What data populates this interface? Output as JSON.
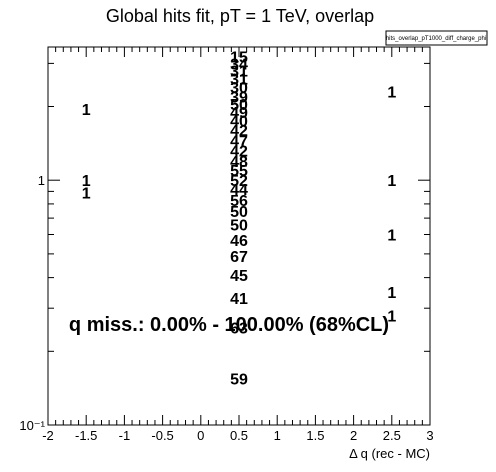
{
  "chart_data": {
    "type": "scatter",
    "title": "Global hits fit, pT = 1 TeV, overlap",
    "xlabel": "Δ q (rec - MC)",
    "ylabel": "",
    "xlim": [
      -2,
      3
    ],
    "ylim": [
      0.1,
      3.5
    ],
    "y_scale": "log",
    "grid": false,
    "x_ticks": [
      "-2",
      "-1.5",
      "-1",
      "-0.5",
      "0",
      "0.5",
      "1",
      "1.5",
      "2",
      "2.5",
      "3"
    ],
    "y_ticks": [
      {
        "label": "1",
        "value": 1
      },
      {
        "label": "10⁻¹",
        "value": 0.1
      }
    ],
    "legend": {
      "entries": [
        "hits_overlap_pT1000_diff_charge_phi"
      ],
      "placement": "top-right"
    },
    "annotation": "q miss.: 0.00% - 100.00% (68%CL)",
    "bin_labels": [
      {
        "x": -1.5,
        "y": 1.95,
        "text": "1"
      },
      {
        "x": -1.5,
        "y": 1.0,
        "text": "1"
      },
      {
        "x": -1.5,
        "y": 0.89,
        "text": "1"
      },
      {
        "x": 2.5,
        "y": 2.3,
        "text": "1"
      },
      {
        "x": 2.5,
        "y": 1.0,
        "text": "1"
      },
      {
        "x": 2.5,
        "y": 0.6,
        "text": "1"
      },
      {
        "x": 2.5,
        "y": 0.35,
        "text": "1"
      },
      {
        "x": 2.5,
        "y": 0.28,
        "text": "1"
      },
      {
        "x": 0.5,
        "y": 3.2,
        "text": "15"
      },
      {
        "x": 0.5,
        "y": 3.0,
        "text": "34"
      },
      {
        "x": 0.5,
        "y": 2.8,
        "text": "31"
      },
      {
        "x": 0.5,
        "y": 2.6,
        "text": "31"
      },
      {
        "x": 0.5,
        "y": 2.4,
        "text": "30"
      },
      {
        "x": 0.5,
        "y": 2.2,
        "text": "39"
      },
      {
        "x": 0.5,
        "y": 2.05,
        "text": "50"
      },
      {
        "x": 0.5,
        "y": 1.9,
        "text": "49"
      },
      {
        "x": 0.5,
        "y": 1.75,
        "text": "40"
      },
      {
        "x": 0.5,
        "y": 1.6,
        "text": "42"
      },
      {
        "x": 0.5,
        "y": 1.45,
        "text": "47"
      },
      {
        "x": 0.5,
        "y": 1.32,
        "text": "42"
      },
      {
        "x": 0.5,
        "y": 1.2,
        "text": "48"
      },
      {
        "x": 0.5,
        "y": 1.1,
        "text": "55"
      },
      {
        "x": 0.5,
        "y": 1.0,
        "text": "52"
      },
      {
        "x": 0.5,
        "y": 0.92,
        "text": "44"
      },
      {
        "x": 0.5,
        "y": 0.83,
        "text": "56"
      },
      {
        "x": 0.5,
        "y": 0.75,
        "text": "50"
      },
      {
        "x": 0.5,
        "y": 0.66,
        "text": "50"
      },
      {
        "x": 0.5,
        "y": 0.57,
        "text": "46"
      },
      {
        "x": 0.5,
        "y": 0.49,
        "text": "67"
      },
      {
        "x": 0.5,
        "y": 0.41,
        "text": "45"
      },
      {
        "x": 0.5,
        "y": 0.33,
        "text": "41"
      },
      {
        "x": 0.5,
        "y": 0.25,
        "text": "63"
      },
      {
        "x": 0.5,
        "y": 0.155,
        "text": "59"
      }
    ]
  }
}
